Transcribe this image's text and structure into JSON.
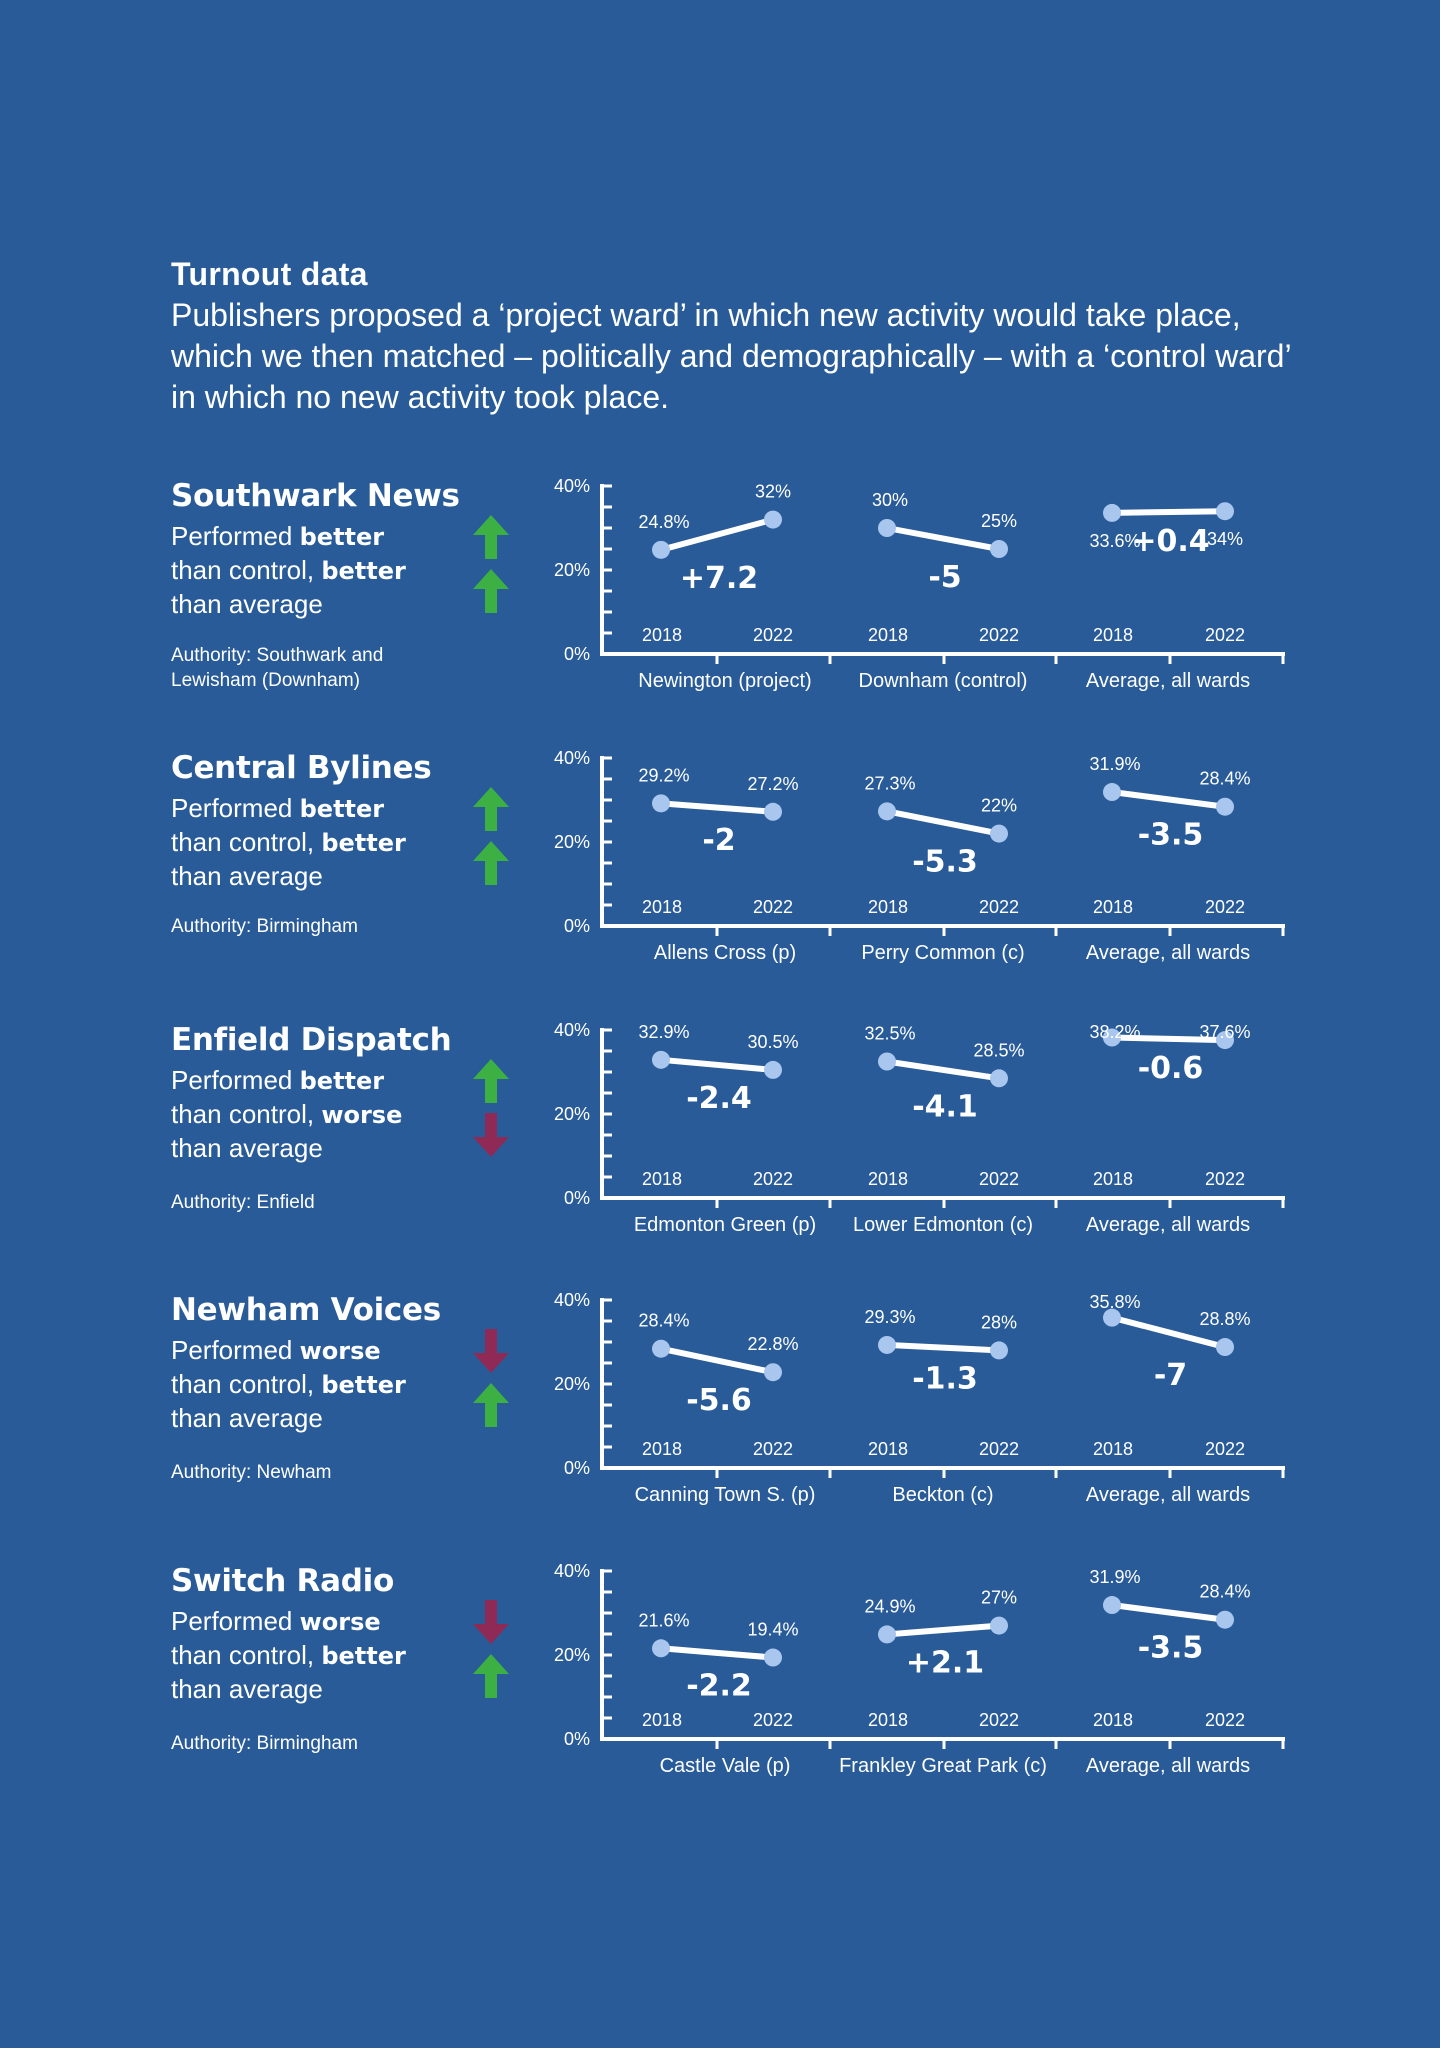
{
  "heading": {
    "title": "Turnout data",
    "intro": "Publishers proposed a ‘project ward’ in which new activity would take place, which we then matched – politically and demographically – with a ‘control ward’ in which no new activity took place."
  },
  "colors": {
    "background": "#285b98",
    "up_arrow": "#3cb043",
    "down_arrow": "#8e2a55",
    "point": "#a9c6ee"
  },
  "blocks": [
    {
      "name": "Southwark News",
      "desc": [
        [
          {
            "t": "Performed ",
            "b": false
          },
          {
            "t": "better",
            "b": true
          }
        ],
        [
          {
            "t": "than control, ",
            "b": false
          },
          {
            "t": "better",
            "b": true
          }
        ],
        [
          {
            "t": "than average",
            "b": false
          }
        ]
      ],
      "arrows": [
        "up-arrow-icon",
        "up-arrow-icon"
      ],
      "authority": "Authority: Southwark and Lewisham (Downham)"
    },
    {
      "name": "Central Bylines",
      "desc": [
        [
          {
            "t": "Performed ",
            "b": false
          },
          {
            "t": "better",
            "b": true
          }
        ],
        [
          {
            "t": "than control, ",
            "b": false
          },
          {
            "t": "better",
            "b": true
          }
        ],
        [
          {
            "t": "than average",
            "b": false
          }
        ]
      ],
      "arrows": [
        "up-arrow-icon",
        "up-arrow-icon"
      ],
      "authority": "Authority: Birmingham"
    },
    {
      "name": "Enfield Dispatch",
      "desc": [
        [
          {
            "t": "Performed ",
            "b": false
          },
          {
            "t": "better",
            "b": true
          }
        ],
        [
          {
            "t": "than control, ",
            "b": false
          },
          {
            "t": "worse",
            "b": true
          }
        ],
        [
          {
            "t": "than average",
            "b": false
          }
        ]
      ],
      "arrows": [
        "up-arrow-icon",
        "down-arrow-icon"
      ],
      "authority": "Authority: Enfield"
    },
    {
      "name": "Newham Voices",
      "desc": [
        [
          {
            "t": "Performed ",
            "b": false
          },
          {
            "t": "worse",
            "b": true
          }
        ],
        [
          {
            "t": "than control, ",
            "b": false
          },
          {
            "t": "better",
            "b": true
          }
        ],
        [
          {
            "t": "than average",
            "b": false
          }
        ]
      ],
      "arrows": [
        "down-arrow-icon",
        "up-arrow-icon"
      ],
      "authority": "Authority: Newham"
    },
    {
      "name": "Switch Radio",
      "desc": [
        [
          {
            "t": "Performed ",
            "b": false
          },
          {
            "t": "worse",
            "b": true
          }
        ],
        [
          {
            "t": "than control, ",
            "b": false
          },
          {
            "t": "better",
            "b": true
          }
        ],
        [
          {
            "t": "than average",
            "b": false
          }
        ]
      ],
      "arrows": [
        "down-arrow-icon",
        "up-arrow-icon"
      ],
      "authority": "Authority: Birmingham"
    }
  ],
  "chart_data": [
    {
      "type": "line",
      "y_ticks": [
        "0%",
        "20%",
        "40%"
      ],
      "ylim": [
        0,
        40
      ],
      "groups": [
        {
          "label": "Newington (project)",
          "x": [
            "2018",
            "2022"
          ],
          "values": [
            24.8,
            32
          ],
          "value_labels": [
            "24.8%",
            "32%"
          ],
          "change": "+7.2"
        },
        {
          "label": "Downham (control)",
          "x": [
            "2018",
            "2022"
          ],
          "values": [
            30,
            25
          ],
          "value_labels": [
            "30%",
            "25%"
          ],
          "change": "-5"
        },
        {
          "label": "Average, all wards",
          "x": [
            "2018",
            "2022"
          ],
          "values": [
            33.6,
            34
          ],
          "value_labels": [
            "33.6%",
            "34%"
          ],
          "change": "+0.4"
        }
      ]
    },
    {
      "type": "line",
      "y_ticks": [
        "0%",
        "20%",
        "40%"
      ],
      "ylim": [
        0,
        40
      ],
      "groups": [
        {
          "label": "Allens Cross (p)",
          "x": [
            "2018",
            "2022"
          ],
          "values": [
            29.2,
            27.2
          ],
          "value_labels": [
            "29.2%",
            "27.2%"
          ],
          "change": "-2"
        },
        {
          "label": "Perry Common (c)",
          "x": [
            "2018",
            "2022"
          ],
          "values": [
            27.3,
            22
          ],
          "value_labels": [
            "27.3%",
            "22%"
          ],
          "change": "-5.3"
        },
        {
          "label": "Average, all wards",
          "x": [
            "2018",
            "2022"
          ],
          "values": [
            31.9,
            28.4
          ],
          "value_labels": [
            "31.9%",
            "28.4%"
          ],
          "change": "-3.5"
        }
      ]
    },
    {
      "type": "line",
      "y_ticks": [
        "0%",
        "20%",
        "40%"
      ],
      "ylim": [
        0,
        40
      ],
      "groups": [
        {
          "label": "Edmonton Green (p)",
          "x": [
            "2018",
            "2022"
          ],
          "values": [
            32.9,
            30.5
          ],
          "value_labels": [
            "32.9%",
            "30.5%"
          ],
          "change": "-2.4"
        },
        {
          "label": "Lower Edmonton (c)",
          "x": [
            "2018",
            "2022"
          ],
          "values": [
            32.5,
            28.5
          ],
          "value_labels": [
            "32.5%",
            "28.5%"
          ],
          "change": "-4.1"
        },
        {
          "label": "Average, all wards",
          "x": [
            "2018",
            "2022"
          ],
          "values": [
            38.2,
            37.6
          ],
          "value_labels": [
            "38.2%",
            "37.6%"
          ],
          "change": "-0.6"
        }
      ]
    },
    {
      "type": "line",
      "y_ticks": [
        "0%",
        "20%",
        "40%"
      ],
      "ylim": [
        0,
        40
      ],
      "groups": [
        {
          "label": "Canning Town S. (p)",
          "x": [
            "2018",
            "2022"
          ],
          "values": [
            28.4,
            22.8
          ],
          "value_labels": [
            "28.4%",
            "22.8%"
          ],
          "change": "-5.6"
        },
        {
          "label": "Beckton (c)",
          "x": [
            "2018",
            "2022"
          ],
          "values": [
            29.3,
            28
          ],
          "value_labels": [
            "29.3%",
            "28%"
          ],
          "change": "-1.3"
        },
        {
          "label": "Average, all wards",
          "x": [
            "2018",
            "2022"
          ],
          "values": [
            35.8,
            28.8
          ],
          "value_labels": [
            "35.8%",
            "28.8%"
          ],
          "change": "-7"
        }
      ]
    },
    {
      "type": "line",
      "y_ticks": [
        "0%",
        "20%",
        "40%"
      ],
      "ylim": [
        0,
        40
      ],
      "groups": [
        {
          "label": "Castle Vale (p)",
          "x": [
            "2018",
            "2022"
          ],
          "values": [
            21.6,
            19.4
          ],
          "value_labels": [
            "21.6%",
            "19.4%"
          ],
          "change": "-2.2"
        },
        {
          "label": "Frankley Great Park (c)",
          "x": [
            "2018",
            "2022"
          ],
          "values": [
            24.9,
            27
          ],
          "value_labels": [
            "24.9%",
            "27%"
          ],
          "change": "+2.1"
        },
        {
          "label": "Average, all wards",
          "x": [
            "2018",
            "2022"
          ],
          "values": [
            31.9,
            28.4
          ],
          "value_labels": [
            "31.9%",
            "28.4%"
          ],
          "change": "-3.5"
        }
      ]
    }
  ]
}
